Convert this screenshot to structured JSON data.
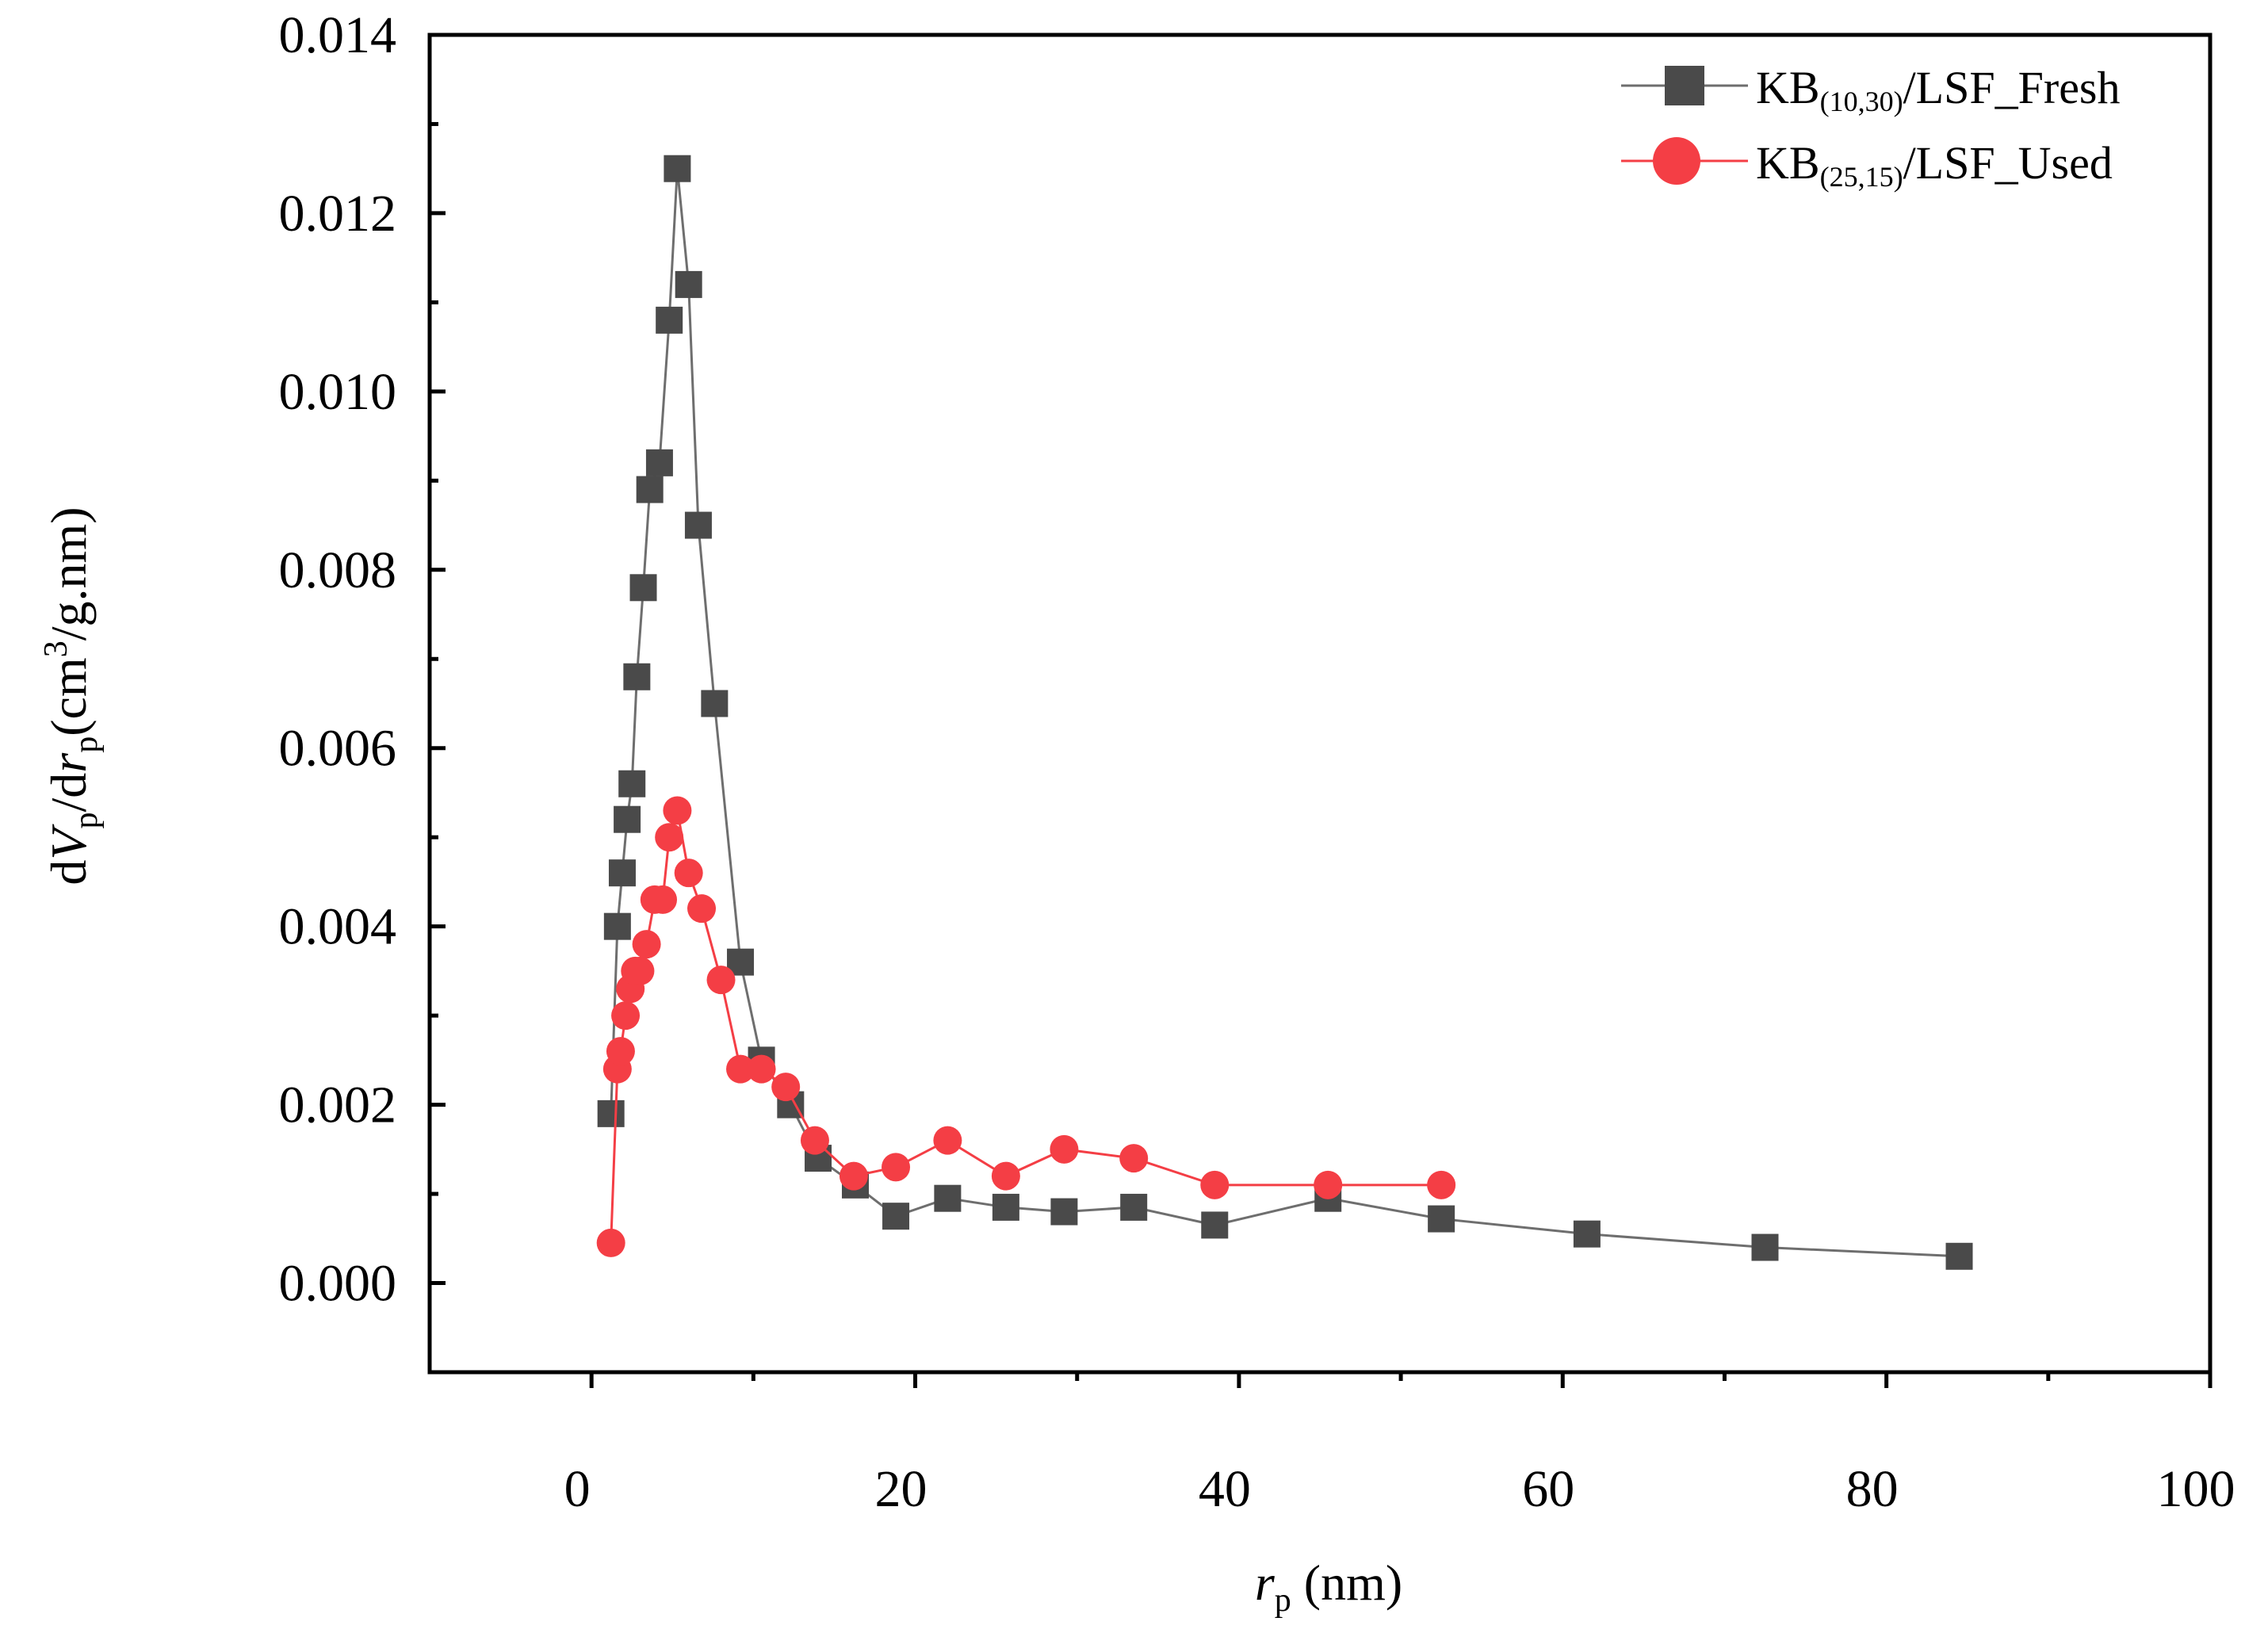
{
  "chart_data": {
    "type": "line",
    "xlabel": {
      "var": "r",
      "sub": "p",
      "unit": " (nm)"
    },
    "ylabel": {
      "p1": "d",
      "v": "V",
      "s1": "p",
      "p2": "/d",
      "r": "r",
      "s2": "p",
      "p3": "(cm",
      "sup": "3",
      "p4": "/g.nm)"
    },
    "xlim": [
      -10,
      100
    ],
    "ylim": [
      -0.001,
      0.014
    ],
    "xticks": [
      0,
      20,
      40,
      60,
      80,
      100
    ],
    "xtick_labels": [
      "0",
      "20",
      "40",
      "60",
      "80",
      "100"
    ],
    "yticks": [
      0,
      0.002,
      0.004,
      0.006,
      0.008,
      0.01,
      0.012,
      0.014
    ],
    "ytick_labels": [
      "0.000",
      "0.002",
      "0.004",
      "0.006",
      "0.008",
      "0.010",
      "0.012",
      "0.014"
    ],
    "legend_position": "top-right",
    "series": [
      {
        "name": "KB(10,30)/LSF_Fresh",
        "label_main": "KB",
        "label_sub": "(10,30)",
        "label_rest": "/LSF_Fresh",
        "marker": "square",
        "color": "#4a4a4a",
        "line_color": "#6e6e6e",
        "x": [
          1.2,
          1.6,
          1.9,
          2.2,
          2.5,
          2.8,
          3.2,
          3.6,
          4.2,
          4.8,
          5.3,
          6.0,
          6.6,
          7.6,
          9.2,
          10.5,
          12.3,
          14.0,
          16.3,
          18.8,
          22.0,
          25.6,
          29.2,
          33.5,
          38.5,
          45.5,
          52.5,
          61.5,
          72.5,
          84.5
        ],
        "y": [
          0.0019,
          0.004,
          0.0046,
          0.0052,
          0.0056,
          0.0068,
          0.0078,
          0.0089,
          0.0092,
          0.0108,
          0.0125,
          0.0112,
          0.0085,
          0.0065,
          0.0036,
          0.0025,
          0.002,
          0.0014,
          0.0011,
          0.00075,
          0.00095,
          0.00085,
          0.0008,
          0.00085,
          0.00065,
          0.00095,
          0.00072,
          0.00055,
          0.0004,
          0.0003
        ]
      },
      {
        "name": "KB(25,15)/LSF_Used",
        "label_main": "KB",
        "label_sub": "(25,15)",
        "label_rest": "/LSF_Used",
        "marker": "circle",
        "color": "#f43e45",
        "line_color": "#f43e45",
        "x": [
          1.2,
          1.6,
          1.8,
          2.1,
          2.4,
          2.7,
          3.0,
          3.4,
          3.9,
          4.4,
          4.8,
          5.3,
          6.0,
          6.8,
          8.0,
          9.2,
          10.5,
          12.0,
          13.8,
          16.2,
          18.8,
          22.0,
          25.6,
          29.2,
          33.5,
          38.5,
          45.5,
          52.5
        ],
        "y": [
          0.00045,
          0.0024,
          0.0026,
          0.003,
          0.0033,
          0.0035,
          0.0035,
          0.0038,
          0.0043,
          0.0043,
          0.005,
          0.0053,
          0.0046,
          0.0042,
          0.0034,
          0.0024,
          0.0024,
          0.0022,
          0.0016,
          0.0012,
          0.0013,
          0.0016,
          0.0012,
          0.0015,
          0.0014,
          0.0011,
          0.0011,
          0.0011
        ]
      }
    ]
  }
}
